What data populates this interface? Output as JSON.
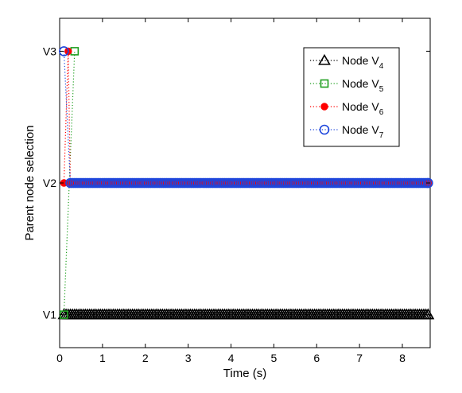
{
  "chart_data": {
    "type": "line",
    "title": "",
    "xlabel": "Time (s)",
    "ylabel": "Parent node selection",
    "xlim": [
      0,
      8.65
    ],
    "ylim": [
      0.75,
      3.25
    ],
    "xticks": [
      "0",
      "1",
      "2",
      "3",
      "4",
      "5",
      "6",
      "7",
      "8"
    ],
    "yticks": [
      {
        "value": 1,
        "label": "V1"
      },
      {
        "value": 2,
        "label": "V2"
      },
      {
        "value": 3,
        "label": "V3"
      }
    ],
    "grid": false,
    "legend_position": "top-right",
    "series": [
      {
        "name": "Node V",
        "subscript": "4",
        "color": "#000000",
        "marker": "triangle",
        "line_style": "dotted",
        "x": [
          0.1,
          8.6
        ],
        "y": [
          1,
          1
        ]
      },
      {
        "name": "Node V",
        "subscript": "5",
        "color": "#1e9e1e",
        "marker": "square",
        "line_style": "dotted",
        "x": [
          0.1,
          0.35
        ],
        "y": [
          1,
          3
        ]
      },
      {
        "name": "Node V",
        "subscript": "6",
        "color": "#ff0000",
        "marker": "filled-circle",
        "line_style": "dotted",
        "x": [
          0.1,
          0.2,
          0.25,
          8.6
        ],
        "y": [
          2,
          3,
          2,
          2
        ]
      },
      {
        "name": "Node V",
        "subscript": "7",
        "color": "#1e46dc",
        "marker": "circle",
        "line_style": "dotted",
        "x": [
          0.1,
          0.25,
          8.6
        ],
        "y": [
          3,
          2,
          2
        ]
      }
    ]
  }
}
